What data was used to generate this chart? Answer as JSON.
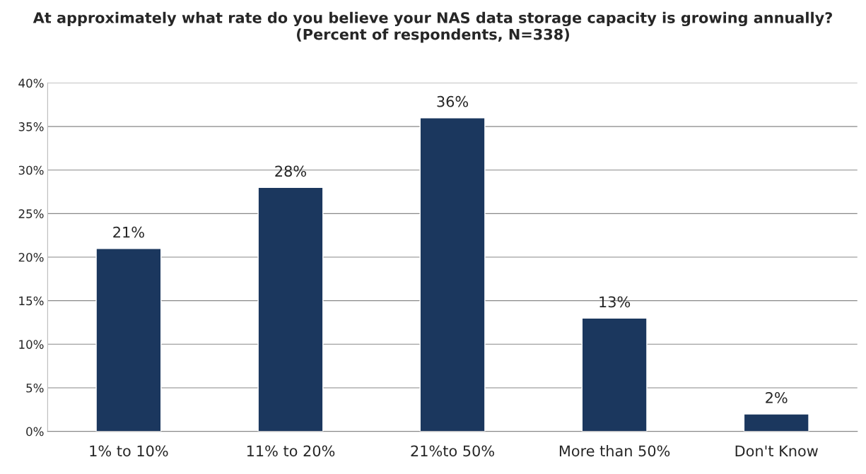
{
  "chart_data": {
    "type": "bar",
    "title": "At approximately what rate do you believe your NAS data storage capacity is growing annually? (Percent of respondents, N=338)",
    "categories": [
      "1% to 10%",
      "11% to 20%",
      "21%to 50%",
      "More than 50%",
      "Don't Know"
    ],
    "values": [
      21,
      28,
      36,
      13,
      2
    ],
    "value_labels": [
      "21%",
      "28%",
      "36%",
      "13%",
      "2%"
    ],
    "color": "#1b375e",
    "ylim": [
      0,
      40
    ],
    "yticks": [
      {
        "value": 0,
        "label": "0%"
      },
      {
        "value": 5,
        "label": "5%"
      },
      {
        "value": 10,
        "label": "10%"
      },
      {
        "value": 15,
        "label": "15%"
      },
      {
        "value": 20,
        "label": "20%"
      },
      {
        "value": 25,
        "label": "25%"
      },
      {
        "value": 30,
        "label": "30%"
      },
      {
        "value": 35,
        "label": "35%"
      },
      {
        "value": 40,
        "label": "40%"
      }
    ],
    "grid": "y",
    "legend": false
  }
}
